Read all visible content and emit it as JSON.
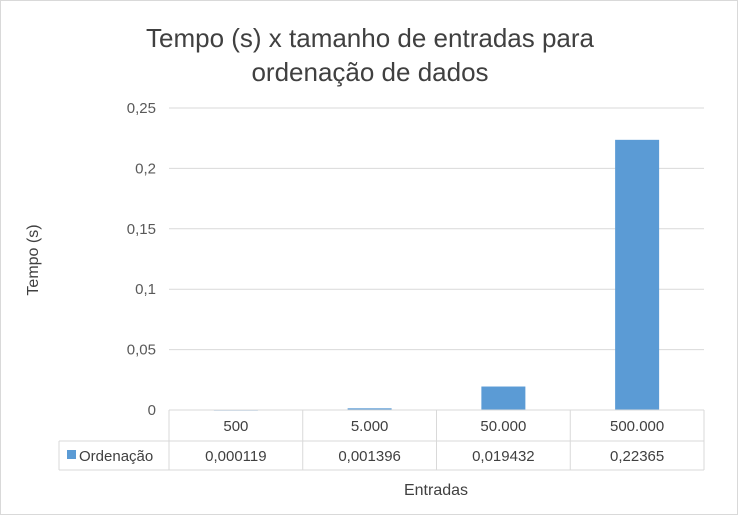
{
  "chart_data": {
    "type": "bar",
    "title_lines": [
      "Tempo (s) x tamanho de entradas para",
      "ordenação de dados"
    ],
    "categories": [
      "500",
      "5.000",
      "50.000",
      "500.000"
    ],
    "series": [
      {
        "name": "Ordenação",
        "values": [
          0.000119,
          0.001396,
          0.019432,
          0.22365
        ],
        "value_labels": [
          "0,000119",
          "0,001396",
          "0,019432",
          "0,22365"
        ],
        "color": "#5b9bd5"
      }
    ],
    "xlabel": "Entradas",
    "ylabel": "Tempo (s)",
    "ylim": [
      0,
      0.25
    ],
    "y_ticks": [
      0,
      0.05,
      0.1,
      0.15,
      0.2,
      0.25
    ],
    "y_tick_labels": [
      "0",
      "0,05",
      "0,1",
      "0,15",
      "0,2",
      "0,25"
    ],
    "grid": true,
    "legend": "data-table"
  }
}
